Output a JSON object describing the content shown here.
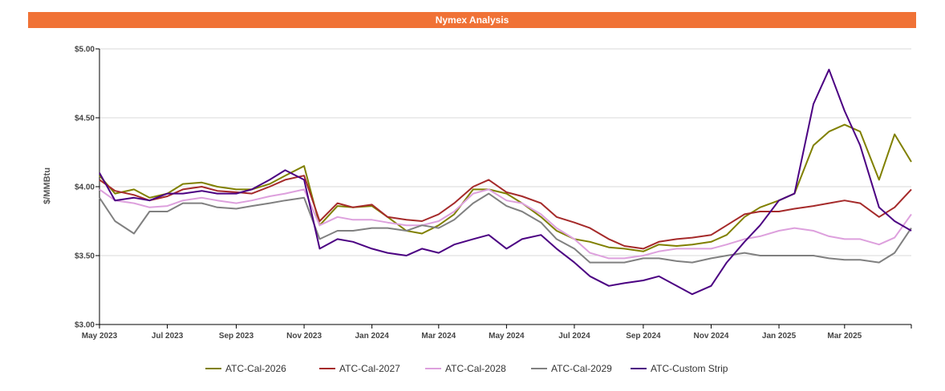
{
  "title": "Nymex Analysis",
  "chart_data": {
    "type": "line",
    "title": "Nymex Analysis",
    "ylabel": "$/MMBtu",
    "xlabel": "",
    "ylim": [
      3.0,
      5.0
    ],
    "yticks": [
      3.0,
      3.5,
      4.0,
      4.5,
      5.0
    ],
    "ytick_labels": [
      "$3.00",
      "$3.50",
      "$4.00",
      "$4.50",
      "$5.00"
    ],
    "xlim": [
      "2023-05-01",
      "2025-04-30"
    ],
    "xtick_dates": [
      "2023-05-01",
      "2023-07-01",
      "2023-09-01",
      "2023-11-01",
      "2024-01-01",
      "2024-03-01",
      "2024-05-01",
      "2024-07-01",
      "2024-09-01",
      "2024-11-01",
      "2025-01-01",
      "2025-03-01"
    ],
    "xtick_labels": [
      "May 2023",
      "Jul 2023",
      "Sep 2023",
      "Nov 2023",
      "Jan 2024",
      "Mar 2024",
      "May 2024",
      "Jul 2024",
      "Sep 2024",
      "Nov 2024",
      "Jan 2025",
      "Mar 2025"
    ],
    "grid": "horizontal",
    "legend_position": "bottom",
    "x": [
      "2023-05-01",
      "2023-05-15",
      "2023-06-01",
      "2023-06-15",
      "2023-07-01",
      "2023-07-15",
      "2023-08-01",
      "2023-08-15",
      "2023-09-01",
      "2023-09-15",
      "2023-10-01",
      "2023-10-15",
      "2023-11-01",
      "2023-11-15",
      "2023-12-01",
      "2023-12-15",
      "2024-01-01",
      "2024-01-15",
      "2024-02-01",
      "2024-02-15",
      "2024-03-01",
      "2024-03-15",
      "2024-04-01",
      "2024-04-15",
      "2024-05-01",
      "2024-05-15",
      "2024-06-01",
      "2024-06-15",
      "2024-07-01",
      "2024-07-15",
      "2024-08-01",
      "2024-08-15",
      "2024-09-01",
      "2024-09-15",
      "2024-10-01",
      "2024-10-15",
      "2024-11-01",
      "2024-11-15",
      "2024-12-01",
      "2024-12-15",
      "2025-01-01",
      "2025-01-15",
      "2025-02-01",
      "2025-02-15",
      "2025-03-01",
      "2025-03-15",
      "2025-04-01",
      "2025-04-15",
      "2025-04-30"
    ],
    "series": [
      {
        "name": "ATC-Cal-2026",
        "color": "#808000",
        "values": [
          4.08,
          3.95,
          3.98,
          3.92,
          3.95,
          4.02,
          4.03,
          4.0,
          3.98,
          3.98,
          4.02,
          4.08,
          4.15,
          3.72,
          3.86,
          3.85,
          3.86,
          3.78,
          3.68,
          3.66,
          3.72,
          3.8,
          3.98,
          3.98,
          3.95,
          3.88,
          3.78,
          3.68,
          3.62,
          3.6,
          3.56,
          3.55,
          3.53,
          3.58,
          3.57,
          3.58,
          3.6,
          3.65,
          3.78,
          3.85,
          3.9,
          3.95,
          4.3,
          4.4,
          4.45,
          4.4,
          4.05,
          4.38,
          4.18
        ]
      },
      {
        "name": "ATC-Cal-2027",
        "color": "#a52a2a",
        "values": [
          4.05,
          3.97,
          3.94,
          3.9,
          3.93,
          3.98,
          4.0,
          3.97,
          3.96,
          3.95,
          4.0,
          4.05,
          4.08,
          3.75,
          3.88,
          3.85,
          3.87,
          3.78,
          3.76,
          3.75,
          3.8,
          3.88,
          4.0,
          4.05,
          3.96,
          3.93,
          3.88,
          3.78,
          3.74,
          3.7,
          3.62,
          3.57,
          3.55,
          3.6,
          3.62,
          3.63,
          3.65,
          3.72,
          3.8,
          3.82,
          3.82,
          3.84,
          3.86,
          3.88,
          3.9,
          3.88,
          3.78,
          3.85,
          3.98
        ]
      },
      {
        "name": "ATC-Cal-2028",
        "color": "#dda0dd",
        "values": [
          3.98,
          3.9,
          3.88,
          3.85,
          3.86,
          3.9,
          3.92,
          3.9,
          3.88,
          3.9,
          3.93,
          3.95,
          3.98,
          3.72,
          3.78,
          3.76,
          3.76,
          3.74,
          3.72,
          3.72,
          3.75,
          3.82,
          3.95,
          3.98,
          3.9,
          3.88,
          3.8,
          3.7,
          3.62,
          3.52,
          3.48,
          3.48,
          3.5,
          3.53,
          3.55,
          3.55,
          3.55,
          3.58,
          3.62,
          3.64,
          3.68,
          3.7,
          3.68,
          3.64,
          3.62,
          3.62,
          3.58,
          3.63,
          3.8
        ]
      },
      {
        "name": "ATC-Cal-2029",
        "color": "#808080",
        "values": [
          3.92,
          3.75,
          3.66,
          3.82,
          3.82,
          3.88,
          3.88,
          3.85,
          3.84,
          3.86,
          3.88,
          3.9,
          3.92,
          3.62,
          3.68,
          3.68,
          3.7,
          3.7,
          3.68,
          3.72,
          3.7,
          3.76,
          3.88,
          3.95,
          3.86,
          3.82,
          3.74,
          3.62,
          3.55,
          3.45,
          3.45,
          3.45,
          3.48,
          3.48,
          3.46,
          3.45,
          3.48,
          3.5,
          3.52,
          3.5,
          3.5,
          3.5,
          3.5,
          3.48,
          3.47,
          3.47,
          3.45,
          3.52,
          3.7
        ]
      },
      {
        "name": "ATC-Custom Strip",
        "color": "#4b0082",
        "values": [
          4.1,
          3.9,
          3.92,
          3.9,
          3.95,
          3.95,
          3.97,
          3.95,
          3.95,
          3.98,
          4.05,
          4.12,
          4.05,
          3.55,
          3.62,
          3.6,
          3.55,
          3.52,
          3.5,
          3.55,
          3.52,
          3.58,
          3.62,
          3.65,
          3.55,
          3.62,
          3.65,
          3.55,
          3.45,
          3.35,
          3.28,
          3.3,
          3.32,
          3.35,
          3.28,
          3.22,
          3.28,
          3.45,
          3.6,
          3.72,
          3.9,
          3.95,
          4.6,
          4.85,
          4.55,
          4.3,
          3.85,
          3.75,
          3.68
        ]
      }
    ]
  }
}
